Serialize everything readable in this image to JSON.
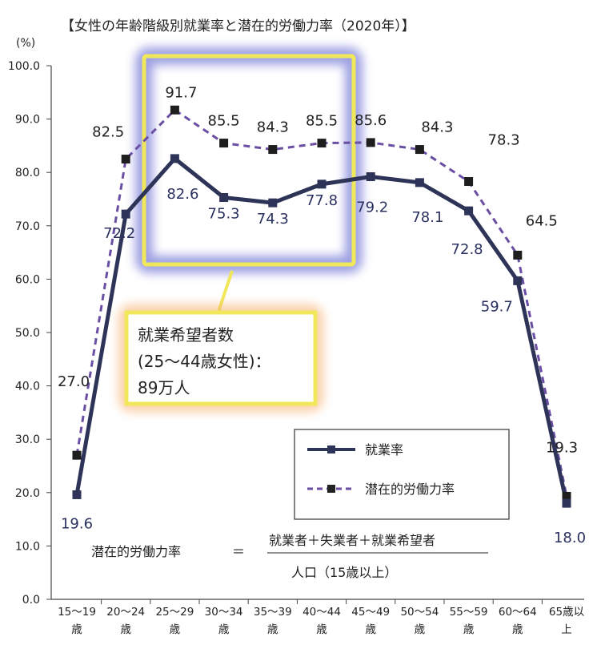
{
  "chart_data": {
    "type": "line",
    "title": "【女性の年齢階級別就業率と潜在的労働力率（2020年）】",
    "y_unit": "(%)",
    "ylim": [
      0,
      100
    ],
    "y_ticks": [
      "0.0",
      "10.0",
      "20.0",
      "30.0",
      "40.0",
      "50.0",
      "60.0",
      "70.0",
      "80.0",
      "90.0",
      "100.0"
    ],
    "categories": [
      [
        "15～19",
        "歳"
      ],
      [
        "20～24",
        "歳"
      ],
      [
        "25～29",
        "歳"
      ],
      [
        "30～34",
        "歳"
      ],
      [
        "35～39",
        "歳"
      ],
      [
        "40～44",
        "歳"
      ],
      [
        "45～49",
        "歳"
      ],
      [
        "50～54",
        "歳"
      ],
      [
        "55～59",
        "歳"
      ],
      [
        "60～64",
        "歳"
      ],
      [
        "65歳以",
        "上"
      ]
    ],
    "series": [
      {
        "name": "就業率",
        "values": [
          19.6,
          72.2,
          82.6,
          75.3,
          74.3,
          77.8,
          79.2,
          78.1,
          72.8,
          59.7,
          18.0
        ],
        "labels": [
          "19.6",
          "72.2",
          "82.6",
          "75.3",
          "74.3",
          "77.8",
          "79.2",
          "78.1",
          "72.8",
          "59.7",
          "18.0"
        ],
        "color": "#2e3358",
        "style": "solid"
      },
      {
        "name": "潜在的労働力率",
        "values": [
          27.0,
          82.5,
          91.7,
          85.5,
          84.3,
          85.5,
          85.6,
          84.3,
          78.3,
          64.5,
          19.3
        ],
        "labels": [
          "27.0",
          "82.5",
          "91.7",
          "85.5",
          "84.3",
          "85.5",
          "85.6",
          "84.3",
          "78.3",
          "64.5",
          "19.3"
        ],
        "color": "#6a4ea3",
        "style": "dashed"
      }
    ],
    "grid": false,
    "legend_position": "bottom-right"
  },
  "callout": {
    "line1": "就業希望者数",
    "line2": "(25～44歳女性)：",
    "line3": "89万人",
    "highlight_color": "#f0e85a",
    "glow_color": "#f8c79a"
  },
  "formula": {
    "lhs": "潜在的労働力率",
    "eq": "＝",
    "numerator": "就業者＋失業者＋就業希望者",
    "denominator": "人口（15歳以上）"
  },
  "colors": {
    "highlight_box": "#f0e85a",
    "highlight_glow": "#7d80d9"
  }
}
